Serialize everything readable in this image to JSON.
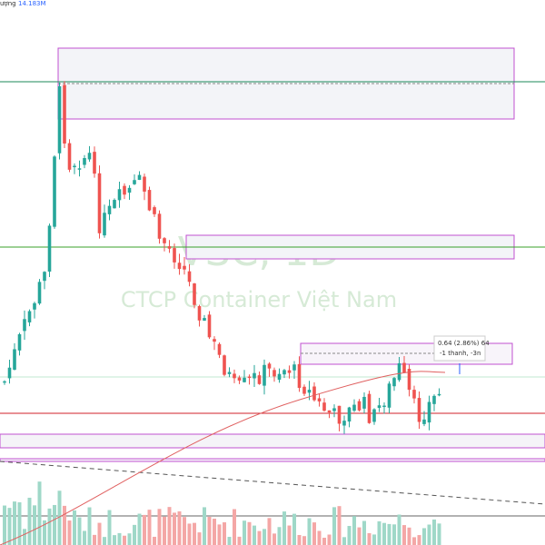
{
  "header": {
    "volume_label": "ượng",
    "volume_value": "14.183M"
  },
  "watermark": {
    "symbol": "VSC, 1D",
    "company": "CTCP Container Việt Nam"
  },
  "measure": {
    "line1": "0.64 (2.86%) 64",
    "line2": "-1 thanh, -3n"
  }
}
